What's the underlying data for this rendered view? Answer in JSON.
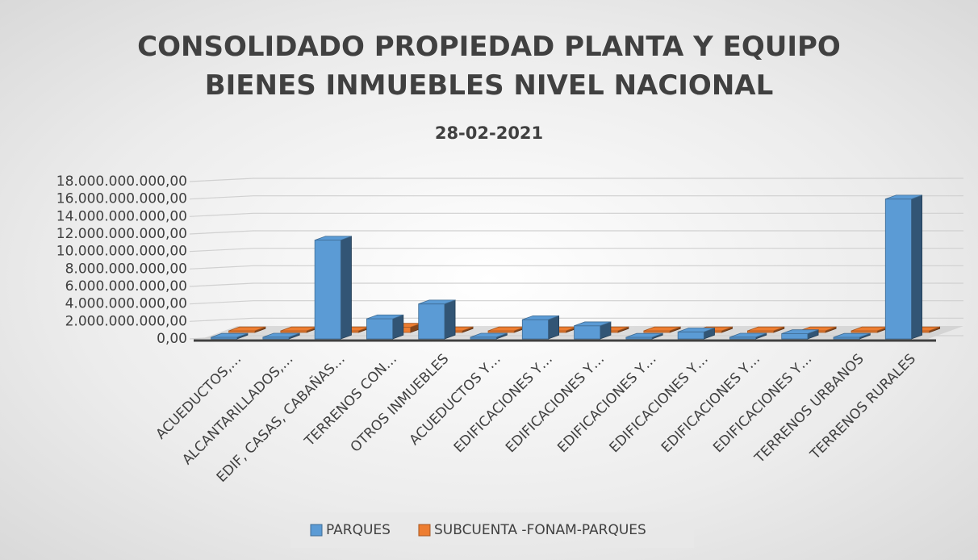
{
  "chart_data": {
    "type": "bar3d",
    "title": "CONSOLIDADO PROPIEDAD PLANTA Y EQUIPO BIENES INMUEBLES NIVEL NACIONAL",
    "subtitle": "28-02-2021",
    "categories": [
      "ACUEDUCTOS,…",
      "ALCANTARILLADOS,…",
      "EDIF, CASAS, CABAÑAS…",
      "TERRENOS CON…",
      "OTROS INMUEBLES",
      "ACUEDUCTOS Y…",
      "EDIFICACIONES Y…",
      "EDIFICACIONES Y…",
      "EDIFICACIONES Y…",
      "EDIFICACIONES Y…",
      "EDIFICACIONES Y…",
      "EDIFICACIONES Y…",
      "TERRENOS URBANOS",
      "TERRENOS RURALES"
    ],
    "series": [
      {
        "name": "PARQUES",
        "color": "#5b9bd5",
        "values": [
          100000000,
          200000000,
          11300000000,
          2300000000,
          4000000000,
          200000000,
          2200000000,
          1500000000,
          100000000,
          800000000,
          200000000,
          600000000,
          100000000,
          16000000000
        ]
      },
      {
        "name": "SUBCUENTA -FONAM-PARQUES",
        "color": "#ed7d31",
        "values": [
          0,
          0,
          0,
          600000000,
          0,
          0,
          0,
          0,
          0,
          0,
          0,
          0,
          0,
          0
        ]
      }
    ],
    "ylim": [
      0,
      18000000000
    ],
    "yticks": [
      {
        "value": 0,
        "label": "0,00"
      },
      {
        "value": 2000000000,
        "label": "2.000.000.000,00"
      },
      {
        "value": 4000000000,
        "label": "4.000.000.000,00"
      },
      {
        "value": 6000000000,
        "label": "6.000.000.000,00"
      },
      {
        "value": 8000000000,
        "label": "8.000.000.000,00"
      },
      {
        "value": 10000000000,
        "label": "10.000.000.000,00"
      },
      {
        "value": 12000000000,
        "label": "12.000.000.000,00"
      },
      {
        "value": 14000000000,
        "label": "14.000.000.000,00"
      },
      {
        "value": 16000000000,
        "label": "16.000.000.000,00"
      },
      {
        "value": 18000000000,
        "label": "18.000.000.000,00"
      }
    ],
    "grid": true,
    "legend": "bottom"
  }
}
